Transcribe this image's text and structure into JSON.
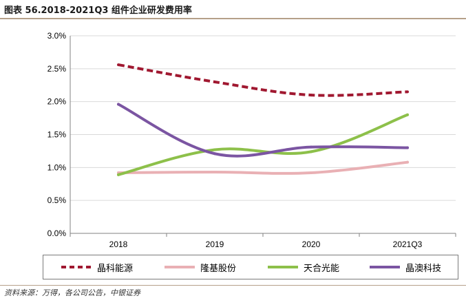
{
  "header": {
    "title": "图表 56.2018-2021Q3 组件企业研发费用率"
  },
  "footer": {
    "source": "资料来源：万得，各公司公告，中银证券"
  },
  "chart_data": {
    "type": "line",
    "title": "",
    "xlabel": "",
    "ylabel": "",
    "categories": [
      "2018",
      "2019",
      "2020",
      "2021Q3"
    ],
    "ylim": [
      0,
      3.0
    ],
    "y_ticks": [
      "0.0%",
      "0.5%",
      "1.0%",
      "1.5%",
      "2.0%",
      "2.5%",
      "3.0%"
    ],
    "grid": true,
    "legend_position": "bottom",
    "series": [
      {
        "name": "晶科能源",
        "values": [
          2.56,
          2.3,
          2.1,
          2.15
        ],
        "color": "#a01830",
        "dashed": true
      },
      {
        "name": "隆基股份",
        "values": [
          0.92,
          0.93,
          0.92,
          1.08
        ],
        "color": "#e9b0b4",
        "dashed": false
      },
      {
        "name": "天合光能",
        "values": [
          0.89,
          1.27,
          1.24,
          1.8
        ],
        "color": "#8dc04a",
        "dashed": false
      },
      {
        "name": "晶澳科技",
        "values": [
          1.96,
          1.21,
          1.31,
          1.3
        ],
        "color": "#7b55a2",
        "dashed": false
      }
    ]
  }
}
